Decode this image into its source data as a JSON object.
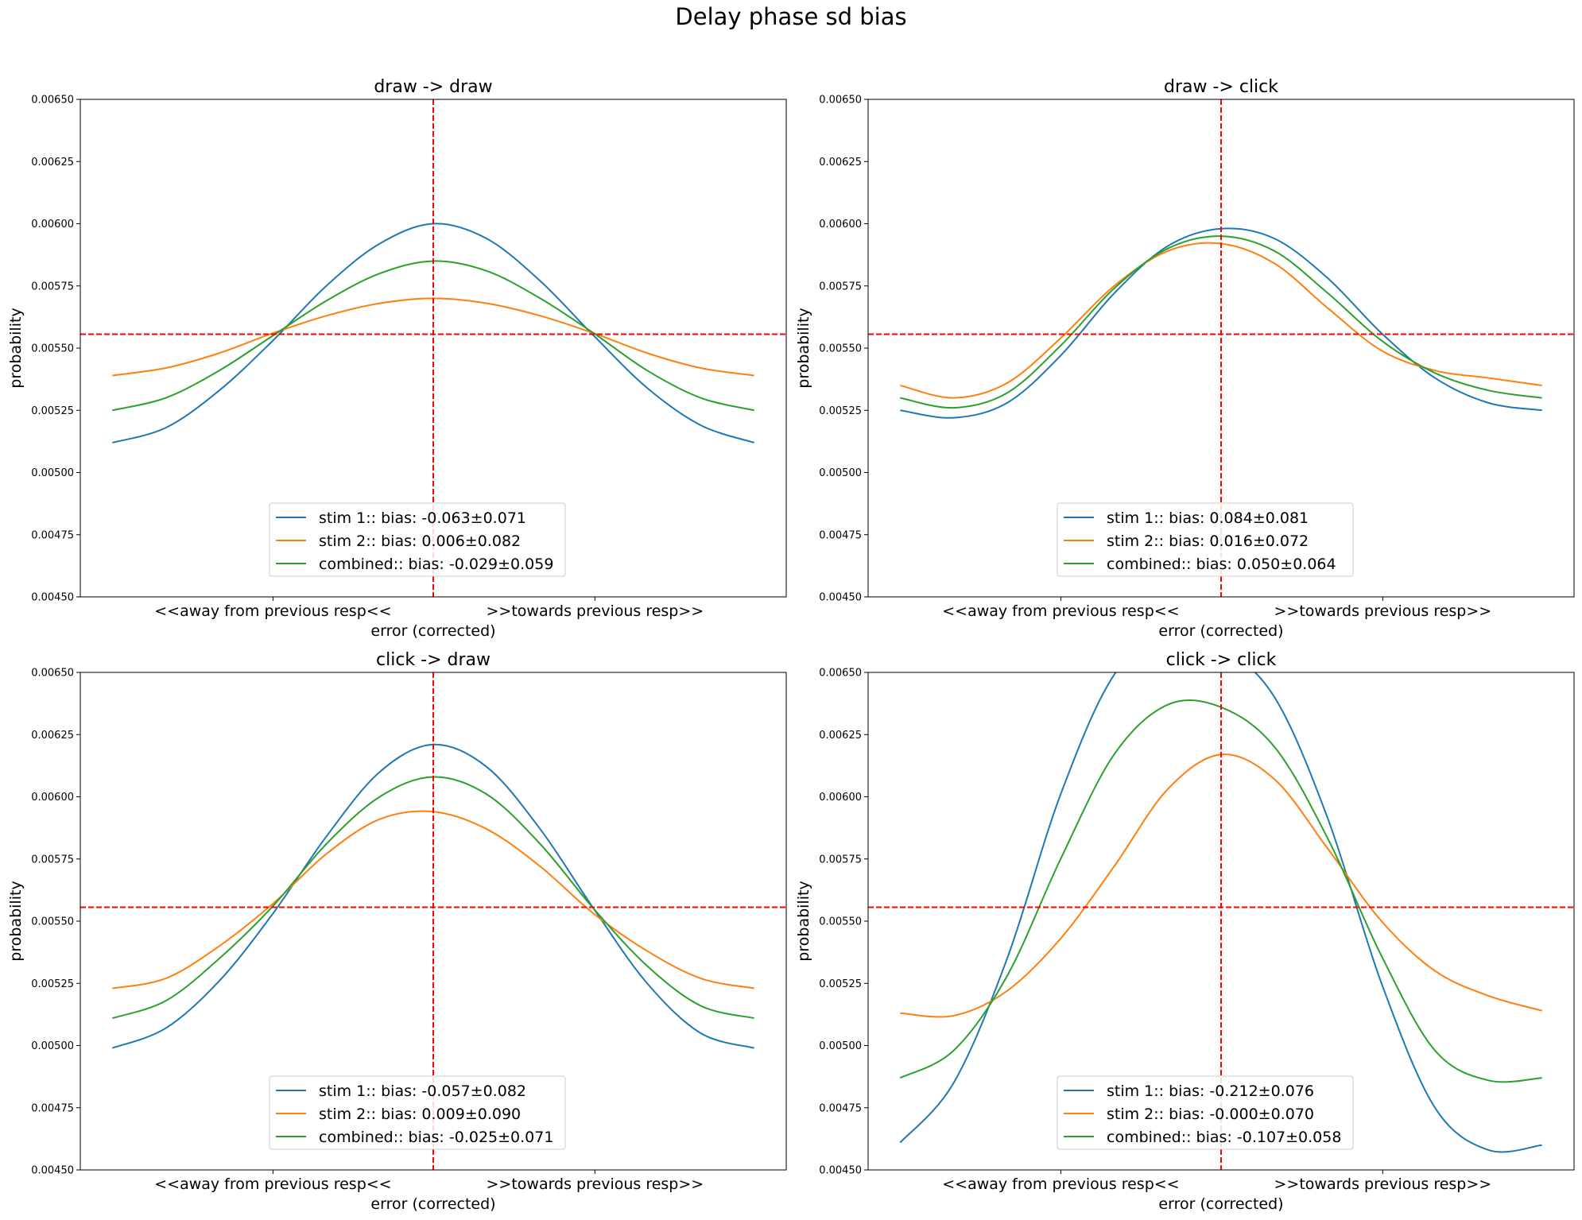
{
  "figure": {
    "title": "Delay phase sd bias"
  },
  "colors": {
    "stim1": "#1f77b4",
    "stim2": "#ff7f0e",
    "combined": "#2ca02c",
    "reference_lines": "#ff0000"
  },
  "chart_data": [
    {
      "type": "line",
      "title": "draw -> draw",
      "xlabel": "error (corrected)",
      "ylabel": "probability",
      "x_tick_labels": [
        "<<away from previous resp<<",
        ">>towards previous resp>>"
      ],
      "xlim": [
        -3.3,
        3.3
      ],
      "ylim": [
        0.0045,
        0.0065
      ],
      "y_ticks": [
        "0.00450",
        "0.00475",
        "0.00500",
        "0.00525",
        "0.00550",
        "0.00575",
        "0.00600",
        "0.00625",
        "0.00650"
      ],
      "hline": 0.005556,
      "vline": 0,
      "legend_loc": "lower center",
      "series": [
        {
          "name": "stim 1:: bias: -0.063±0.071",
          "color_key": "stim1",
          "x": [
            -3.0,
            -2.5,
            -2.0,
            -1.5,
            -1.0,
            -0.5,
            0.0,
            0.5,
            1.0,
            1.5,
            2.0,
            2.5,
            3.0
          ],
          "y": [
            0.00512,
            0.00518,
            0.00533,
            0.00553,
            0.00575,
            0.00592,
            0.006,
            0.00594,
            0.00577,
            0.00555,
            0.00534,
            0.00519,
            0.00512
          ]
        },
        {
          "name": "stim 2:: bias: 0.006±0.082",
          "color_key": "stim2",
          "x": [
            -3.0,
            -2.5,
            -2.0,
            -1.5,
            -1.0,
            -0.5,
            0.0,
            0.5,
            1.0,
            1.5,
            2.0,
            2.5,
            3.0
          ],
          "y": [
            0.00539,
            0.00542,
            0.00548,
            0.00556,
            0.00563,
            0.00568,
            0.0057,
            0.00568,
            0.00563,
            0.00556,
            0.00548,
            0.00542,
            0.00539
          ]
        },
        {
          "name": "combined:: bias: -0.029±0.059",
          "color_key": "combined",
          "x": [
            -3.0,
            -2.5,
            -2.0,
            -1.5,
            -1.0,
            -0.5,
            0.0,
            0.5,
            1.0,
            1.5,
            2.0,
            2.5,
            3.0
          ],
          "y": [
            0.00525,
            0.0053,
            0.00541,
            0.00555,
            0.00569,
            0.0058,
            0.00585,
            0.00581,
            0.0057,
            0.00556,
            0.00541,
            0.0053,
            0.00525
          ]
        }
      ]
    },
    {
      "type": "line",
      "title": "draw -> click",
      "xlabel": "error (corrected)",
      "ylabel": "probability",
      "x_tick_labels": [
        "<<away from previous resp<<",
        ">>towards previous resp>>"
      ],
      "xlim": [
        -3.3,
        3.3
      ],
      "ylim": [
        0.0045,
        0.0065
      ],
      "y_ticks": [
        "0.00450",
        "0.00475",
        "0.00500",
        "0.00525",
        "0.00550",
        "0.00575",
        "0.00600",
        "0.00625",
        "0.00650"
      ],
      "hline": 0.005556,
      "vline": 0,
      "legend_loc": "lower center",
      "series": [
        {
          "name": "stim 1:: bias: 0.084±0.081",
          "color_key": "stim1",
          "x": [
            -3.0,
            -2.5,
            -2.0,
            -1.5,
            -1.0,
            -0.5,
            0.0,
            0.5,
            1.0,
            1.5,
            2.0,
            2.5,
            3.0
          ],
          "y": [
            0.00525,
            0.00522,
            0.00528,
            0.00547,
            0.00572,
            0.00591,
            0.00598,
            0.00594,
            0.00578,
            0.00556,
            0.00538,
            0.00528,
            0.00525
          ]
        },
        {
          "name": "stim 2:: bias: 0.016±0.072",
          "color_key": "stim2",
          "x": [
            -3.0,
            -2.5,
            -2.0,
            -1.5,
            -1.0,
            -0.5,
            0.0,
            0.5,
            1.0,
            1.5,
            2.0,
            2.5,
            3.0
          ],
          "y": [
            0.00535,
            0.0053,
            0.00536,
            0.00554,
            0.00575,
            0.00589,
            0.00592,
            0.00584,
            0.00566,
            0.00549,
            0.00541,
            0.00538,
            0.00535
          ]
        },
        {
          "name": "combined:: bias: 0.050±0.064",
          "color_key": "combined",
          "x": [
            -3.0,
            -2.5,
            -2.0,
            -1.5,
            -1.0,
            -0.5,
            0.0,
            0.5,
            1.0,
            1.5,
            2.0,
            2.5,
            3.0
          ],
          "y": [
            0.0053,
            0.00526,
            0.00532,
            0.00551,
            0.00574,
            0.0059,
            0.00595,
            0.00589,
            0.00572,
            0.00553,
            0.0054,
            0.00533,
            0.0053
          ]
        }
      ]
    },
    {
      "type": "line",
      "title": "click -> draw",
      "xlabel": "error (corrected)",
      "ylabel": "probability",
      "x_tick_labels": [
        "<<away from previous resp<<",
        ">>towards previous resp>>"
      ],
      "xlim": [
        -3.3,
        3.3
      ],
      "ylim": [
        0.0045,
        0.0065
      ],
      "y_ticks": [
        "0.00450",
        "0.00475",
        "0.00500",
        "0.00525",
        "0.00550",
        "0.00575",
        "0.00600",
        "0.00625",
        "0.00650"
      ],
      "hline": 0.005556,
      "vline": 0,
      "legend_loc": "lower center",
      "series": [
        {
          "name": "stim 1:: bias: -0.057±0.082",
          "color_key": "stim1",
          "x": [
            -3.0,
            -2.5,
            -2.0,
            -1.5,
            -1.0,
            -0.5,
            0.0,
            0.5,
            1.0,
            1.5,
            2.0,
            2.5,
            3.0
          ],
          "y": [
            0.00499,
            0.00507,
            0.00526,
            0.00553,
            0.00584,
            0.0061,
            0.00621,
            0.00612,
            0.00587,
            0.00555,
            0.00525,
            0.00505,
            0.00499
          ]
        },
        {
          "name": "stim 2:: bias: 0.009±0.090",
          "color_key": "stim2",
          "x": [
            -3.0,
            -2.5,
            -2.0,
            -1.5,
            -1.0,
            -0.5,
            0.0,
            0.5,
            1.0,
            1.5,
            2.0,
            2.5,
            3.0
          ],
          "y": [
            0.00523,
            0.00527,
            0.0054,
            0.00557,
            0.00577,
            0.00591,
            0.00594,
            0.00587,
            0.00572,
            0.00553,
            0.00538,
            0.00527,
            0.00523
          ]
        },
        {
          "name": "combined:: bias: -0.025±0.071",
          "color_key": "combined",
          "x": [
            -3.0,
            -2.5,
            -2.0,
            -1.5,
            -1.0,
            -0.5,
            0.0,
            0.5,
            1.0,
            1.5,
            2.0,
            2.5,
            3.0
          ],
          "y": [
            0.00511,
            0.00518,
            0.00535,
            0.00556,
            0.00581,
            0.006,
            0.00608,
            0.00601,
            0.00581,
            0.00555,
            0.00532,
            0.00516,
            0.00511
          ]
        }
      ]
    },
    {
      "type": "line",
      "title": "click -> click",
      "xlabel": "error (corrected)",
      "ylabel": "probability",
      "x_tick_labels": [
        "<<away from previous resp<<",
        ">>towards previous resp>>"
      ],
      "xlim": [
        -3.3,
        3.3
      ],
      "ylim": [
        0.0045,
        0.0065
      ],
      "y_ticks": [
        "0.00450",
        "0.00475",
        "0.00500",
        "0.00525",
        "0.00550",
        "0.00575",
        "0.00600",
        "0.00625",
        "0.00650"
      ],
      "hline": 0.005556,
      "vline": 0,
      "legend_loc": "lower center",
      "series": [
        {
          "name": "stim 1:: bias: -0.212±0.076",
          "color_key": "stim1",
          "x": [
            -3.0,
            -2.5,
            -2.0,
            -1.5,
            -1.0,
            -0.5,
            0.0,
            0.5,
            1.0,
            1.5,
            2.0,
            2.5,
            3.0
          ],
          "y": [
            0.00461,
            0.00485,
            0.00535,
            0.00601,
            0.00649,
            0.00665,
            0.0066,
            0.0064,
            0.00591,
            0.00525,
            0.00475,
            0.00458,
            0.0046
          ]
        },
        {
          "name": "stim 2:: bias: -0.000±0.070",
          "color_key": "stim2",
          "x": [
            -3.0,
            -2.5,
            -2.0,
            -1.5,
            -1.0,
            -0.5,
            0.0,
            0.5,
            1.0,
            1.5,
            2.0,
            2.5,
            3.0
          ],
          "y": [
            0.00513,
            0.00512,
            0.00522,
            0.00543,
            0.00572,
            0.00603,
            0.00617,
            0.00607,
            0.00579,
            0.0055,
            0.0053,
            0.0052,
            0.00514
          ]
        },
        {
          "name": "combined:: bias: -0.107±0.058",
          "color_key": "combined",
          "x": [
            -3.0,
            -2.5,
            -2.0,
            -1.5,
            -1.0,
            -0.5,
            0.0,
            0.5,
            1.0,
            1.5,
            2.0,
            2.5,
            3.0
          ],
          "y": [
            0.00487,
            0.00498,
            0.00528,
            0.00575,
            0.00617,
            0.00637,
            0.00636,
            0.0062,
            0.00583,
            0.00536,
            0.00498,
            0.00486,
            0.00487
          ]
        }
      ]
    }
  ]
}
